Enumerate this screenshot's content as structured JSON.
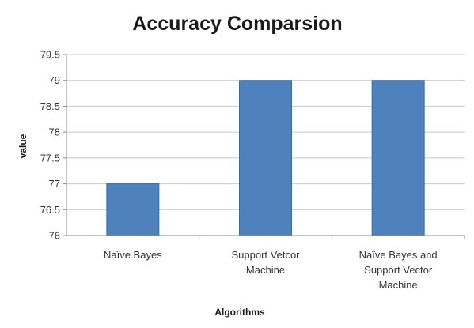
{
  "chart_data": {
    "type": "bar",
    "title": "Accuracy Comparsion",
    "xlabel": "Algorithms",
    "ylabel": "value",
    "categories": [
      [
        "Naïve Bayes"
      ],
      [
        "Support Vetcor",
        "Machine"
      ],
      [
        "Naïve Bayes and",
        "Support Vector",
        "Machine"
      ]
    ],
    "values": [
      77,
      79,
      79
    ],
    "ylim": [
      76,
      79.5
    ],
    "yticks": [
      "76",
      "76.5",
      "77",
      "77.5",
      "78",
      "78.5",
      "79",
      "79.5"
    ],
    "grid": true,
    "legend": "none",
    "bar_color": "#4f81bd",
    "bar_stroke": "#3d6a9e",
    "grid_color": "#c8c8c8"
  }
}
